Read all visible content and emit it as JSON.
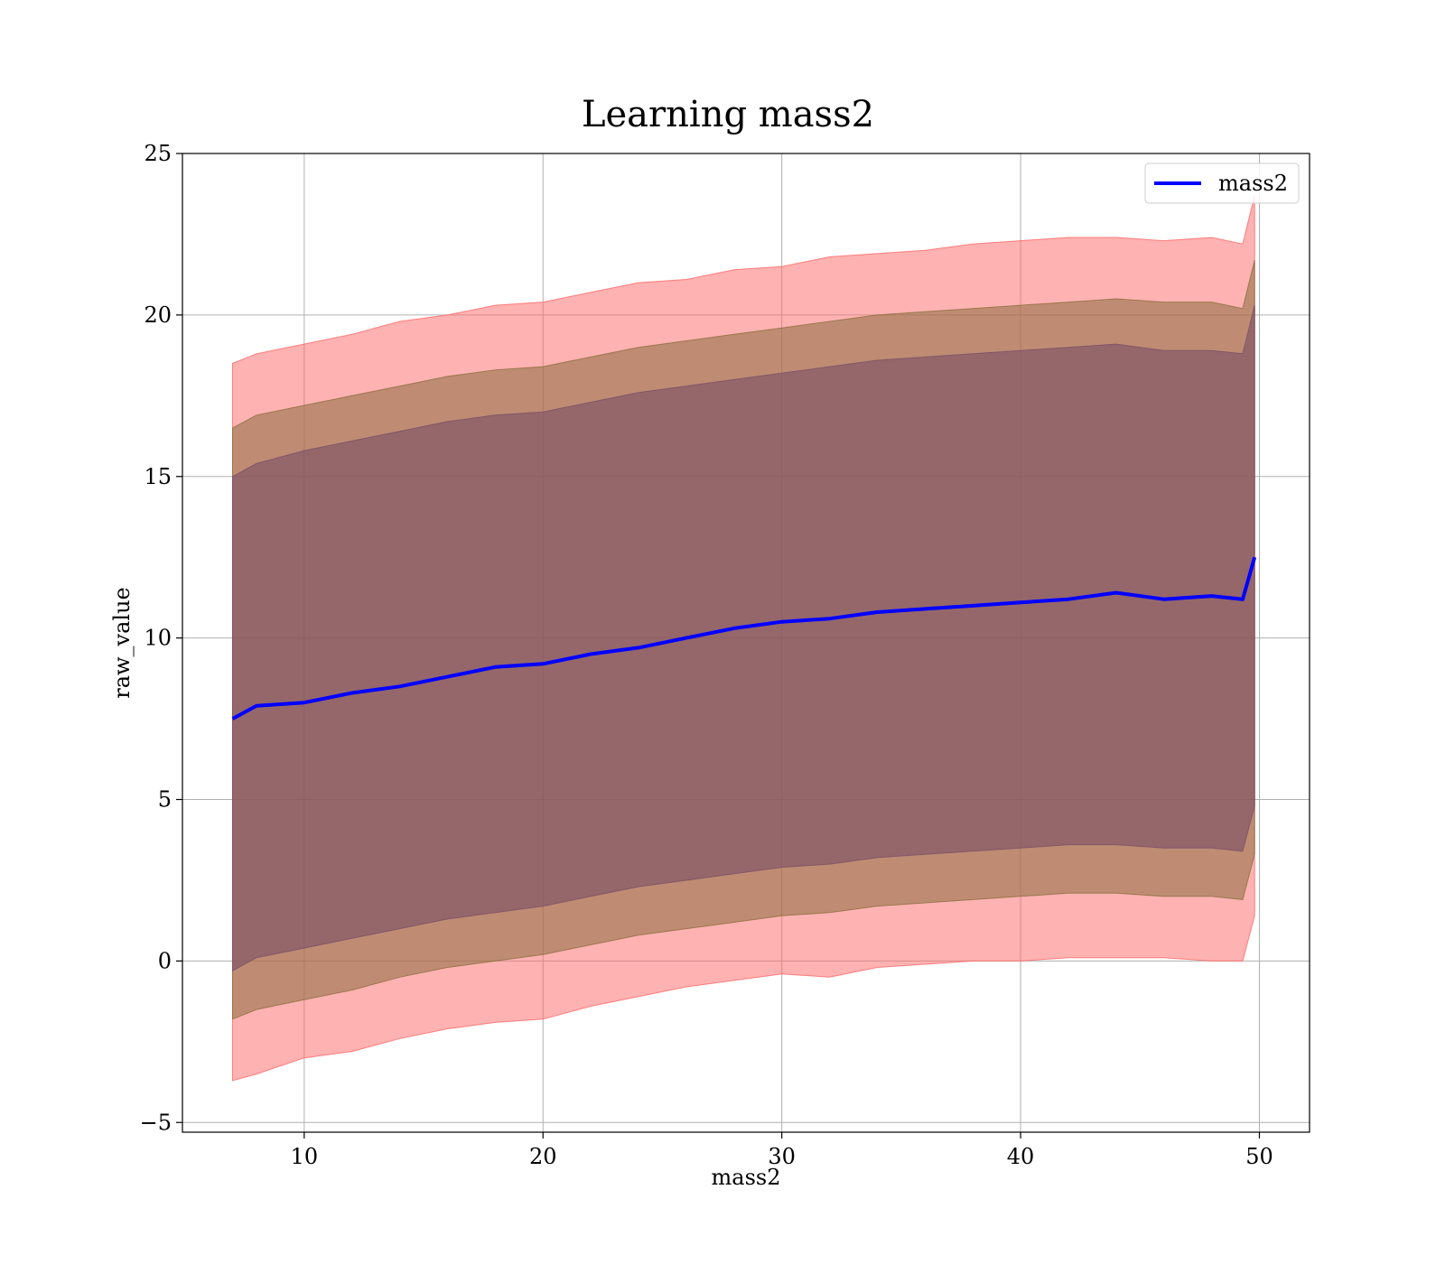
{
  "chart_data": {
    "type": "area",
    "title": "Learning mass2",
    "xlabel": "mass2",
    "ylabel": "raw_value",
    "xlim": [
      4.9,
      52.1
    ],
    "ylim": [
      -5.3,
      25
    ],
    "xticks": [
      10,
      20,
      30,
      40,
      50
    ],
    "yticks": [
      -5,
      0,
      5,
      10,
      15,
      20,
      25
    ],
    "xtick_labels": [
      "10",
      "20",
      "30",
      "40",
      "50"
    ],
    "ytick_labels": [
      "−5",
      "0",
      "5",
      "10",
      "15",
      "20",
      "25"
    ],
    "grid": true,
    "legend": {
      "placement": "top-right",
      "entries": [
        "mass2"
      ]
    },
    "colors": {
      "line": "#0000ff",
      "band_outer": "#ff6666",
      "band_mid": "#8b6e3f",
      "band_inner": "#7a4f66"
    },
    "series": [
      {
        "name": "mass2",
        "x": [
          7,
          8,
          10,
          12,
          14,
          16,
          18,
          20,
          22,
          24,
          26,
          28,
          30,
          32,
          34,
          36,
          38,
          40,
          42,
          44,
          46,
          48,
          49.3,
          49.8
        ],
        "values": [
          7.5,
          7.9,
          8.0,
          8.3,
          8.5,
          8.8,
          9.1,
          9.2,
          9.5,
          9.7,
          10.0,
          10.3,
          10.5,
          10.6,
          10.8,
          10.9,
          11.0,
          11.1,
          11.2,
          11.4,
          11.2,
          11.3,
          11.2,
          12.5
        ]
      },
      {
        "name": "",
        "x": [
          7,
          8,
          10,
          12,
          14,
          16,
          18,
          20,
          22,
          24,
          26,
          28,
          30,
          32,
          34,
          36,
          38,
          40,
          42,
          44,
          46,
          48,
          49.3,
          49.8
        ],
        "upper": [
          18.5,
          18.8,
          19.1,
          19.4,
          19.8,
          20.0,
          20.3,
          20.4,
          20.7,
          21.0,
          21.1,
          21.4,
          21.5,
          21.8,
          21.9,
          22.0,
          22.2,
          22.3,
          22.4,
          22.4,
          22.3,
          22.4,
          22.2,
          23.7
        ],
        "lower": [
          -3.7,
          -3.5,
          -3.0,
          -2.8,
          -2.4,
          -2.1,
          -1.9,
          -1.8,
          -1.4,
          -1.1,
          -0.8,
          -0.6,
          -0.4,
          -0.5,
          -0.2,
          -0.1,
          0.0,
          0.0,
          0.1,
          0.1,
          0.1,
          0.0,
          0.0,
          1.4
        ]
      },
      {
        "name": "",
        "x": [
          7,
          8,
          10,
          12,
          14,
          16,
          18,
          20,
          22,
          24,
          26,
          28,
          30,
          32,
          34,
          36,
          38,
          40,
          42,
          44,
          46,
          48,
          49.3,
          49.8
        ],
        "upper": [
          16.5,
          16.9,
          17.2,
          17.5,
          17.8,
          18.1,
          18.3,
          18.4,
          18.7,
          19.0,
          19.2,
          19.4,
          19.6,
          19.8,
          20.0,
          20.1,
          20.2,
          20.3,
          20.4,
          20.5,
          20.4,
          20.4,
          20.2,
          21.7
        ],
        "lower": [
          -1.8,
          -1.5,
          -1.2,
          -0.9,
          -0.5,
          -0.2,
          0.0,
          0.2,
          0.5,
          0.8,
          1.0,
          1.2,
          1.4,
          1.5,
          1.7,
          1.8,
          1.9,
          2.0,
          2.1,
          2.1,
          2.0,
          2.0,
          1.9,
          3.3
        ]
      },
      {
        "name": "",
        "x": [
          7,
          8,
          10,
          12,
          14,
          16,
          18,
          20,
          22,
          24,
          26,
          28,
          30,
          32,
          34,
          36,
          38,
          40,
          42,
          44,
          46,
          48,
          49.3,
          49.8
        ],
        "upper": [
          15.0,
          15.4,
          15.8,
          16.1,
          16.4,
          16.7,
          16.9,
          17.0,
          17.3,
          17.6,
          17.8,
          18.0,
          18.2,
          18.4,
          18.6,
          18.7,
          18.8,
          18.9,
          19.0,
          19.1,
          18.9,
          18.9,
          18.8,
          20.3
        ],
        "lower": [
          -0.3,
          0.1,
          0.4,
          0.7,
          1.0,
          1.3,
          1.5,
          1.7,
          2.0,
          2.3,
          2.5,
          2.7,
          2.9,
          3.0,
          3.2,
          3.3,
          3.4,
          3.5,
          3.6,
          3.6,
          3.5,
          3.5,
          3.4,
          4.8
        ]
      }
    ]
  }
}
